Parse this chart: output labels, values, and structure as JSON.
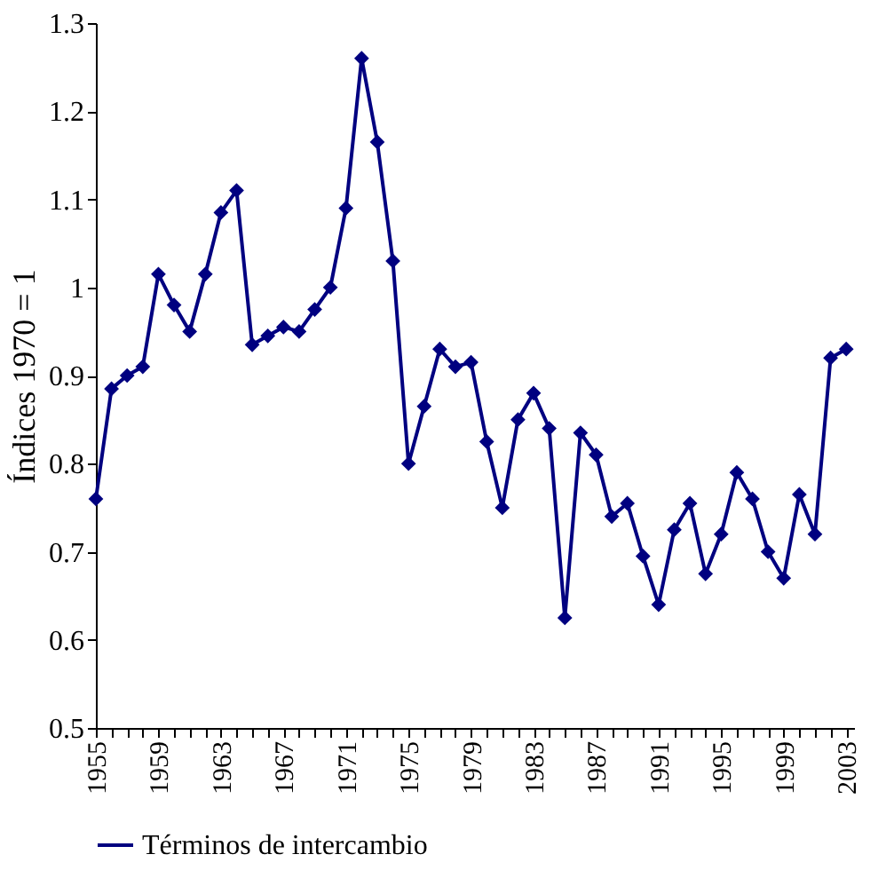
{
  "chart_data": {
    "type": "line",
    "ylabel": "Índices 1970 = 1",
    "x": [
      1955,
      1956,
      1957,
      1958,
      1959,
      1960,
      1961,
      1962,
      1963,
      1964,
      1965,
      1966,
      1967,
      1968,
      1969,
      1970,
      1971,
      1972,
      1973,
      1974,
      1975,
      1976,
      1977,
      1978,
      1979,
      1980,
      1981,
      1982,
      1983,
      1984,
      1985,
      1986,
      1987,
      1988,
      1989,
      1990,
      1991,
      1992,
      1993,
      1994,
      1995,
      1996,
      1997,
      1998,
      1999,
      2000,
      2001,
      2002,
      2003
    ],
    "series": [
      {
        "name": "Términos de intercambio",
        "color": "#000080",
        "values": [
          0.76,
          0.885,
          0.9,
          0.91,
          1.015,
          0.98,
          0.95,
          1.015,
          1.085,
          1.11,
          0.935,
          0.945,
          0.955,
          0.95,
          0.975,
          1.0,
          1.09,
          1.26,
          1.165,
          1.03,
          0.8,
          0.865,
          0.93,
          0.91,
          0.915,
          0.825,
          0.75,
          0.85,
          0.88,
          0.84,
          0.625,
          0.835,
          0.81,
          0.74,
          0.755,
          0.695,
          0.64,
          0.725,
          0.755,
          0.675,
          0.72,
          0.79,
          0.76,
          0.7,
          0.67,
          0.765,
          0.72,
          0.92,
          0.93
        ]
      }
    ],
    "xlim": [
      1955,
      2003.5
    ],
    "xticks": [
      1955,
      {
        "value": 1956,
        "label": null
      },
      {
        "value": 1957,
        "label": null
      },
      {
        "value": 1958,
        "label": null
      },
      1959,
      {
        "value": 1960,
        "label": null
      },
      {
        "value": 1961,
        "label": null
      },
      {
        "value": 1962,
        "label": null
      },
      1963,
      {
        "value": 1964,
        "label": null
      },
      {
        "value": 1965,
        "label": null
      },
      {
        "value": 1966,
        "label": null
      },
      1967,
      {
        "value": 1968,
        "label": null
      },
      {
        "value": 1969,
        "label": null
      },
      {
        "value": 1970,
        "label": null
      },
      1971,
      {
        "value": 1972,
        "label": null
      },
      {
        "value": 1973,
        "label": null
      },
      {
        "value": 1974,
        "label": null
      },
      1975,
      {
        "value": 1976,
        "label": null
      },
      {
        "value": 1977,
        "label": null
      },
      {
        "value": 1978,
        "label": null
      },
      1979,
      {
        "value": 1980,
        "label": null
      },
      {
        "value": 1981,
        "label": null
      },
      {
        "value": 1982,
        "label": null
      },
      1983,
      {
        "value": 1984,
        "label": null
      },
      {
        "value": 1985,
        "label": null
      },
      {
        "value": 1986,
        "label": null
      },
      1987,
      {
        "value": 1988,
        "label": null
      },
      {
        "value": 1989,
        "label": null
      },
      {
        "value": 1990,
        "label": null
      },
      1991,
      {
        "value": 1992,
        "label": null
      },
      {
        "value": 1993,
        "label": null
      },
      {
        "value": 1994,
        "label": null
      },
      1995,
      {
        "value": 1996,
        "label": null
      },
      {
        "value": 1997,
        "label": null
      },
      {
        "value": 1998,
        "label": null
      },
      1999,
      {
        "value": 2000,
        "label": null
      },
      {
        "value": 2001,
        "label": null
      },
      {
        "value": 2002,
        "label": null
      },
      2003
    ],
    "ylim": [
      0.5,
      1.3
    ],
    "yticks": [
      0.5,
      0.6,
      0.7,
      0.8,
      0.9,
      1,
      1.1,
      1.2,
      1.3
    ],
    "marker": "diamond",
    "legend": "bottom",
    "grid": false
  }
}
